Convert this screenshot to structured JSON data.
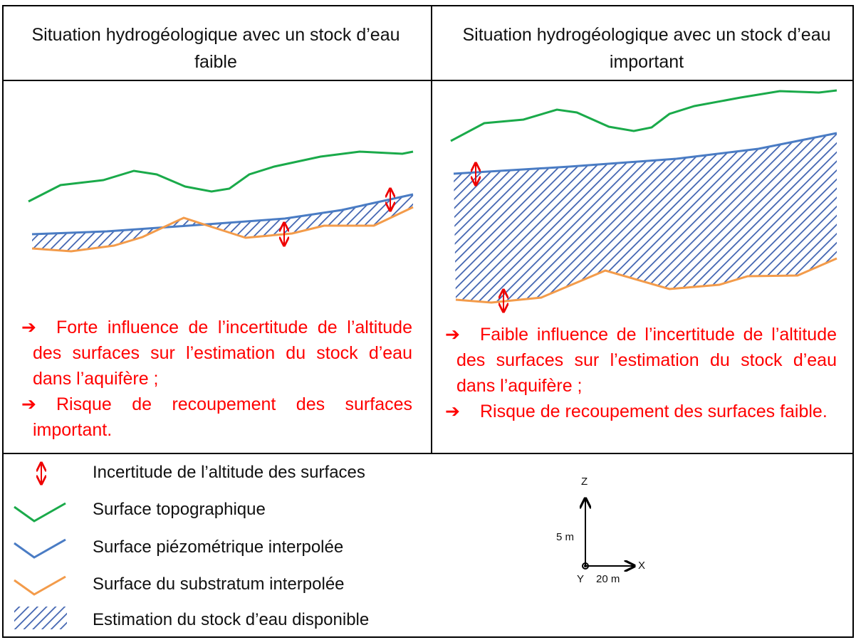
{
  "panels": [
    {
      "title": "Situation hydrogéologique avec un stock d’eau faible",
      "bullets": [
        "Forte influence de l’incertitude  de l’altitude des surfaces sur l’estimation du stock d’eau dans l’aquifère ;",
        "Risque de recoupement des surfaces important."
      ]
    },
    {
      "title": "Situation hydrogéologique avec un stock d’eau important",
      "bullets": [
        "Faible influence de l’incertitude  de l’altitude des surfaces sur l’estimation du stock d’eau dans l’aquifère ;",
        "Risque de recoupement des surfaces faible."
      ]
    }
  ],
  "legend": [
    "Incertitude de l’altitude des surfaces",
    "Surface topographique",
    "Surface piézométrique interpolée",
    "Surface du substratum interpolée",
    "Estimation du stock d’eau disponible"
  ],
  "axes": {
    "z": "Z",
    "x": "X",
    "y": "Y",
    "z_scale": "5 m",
    "x_scale": "20 m"
  }
}
